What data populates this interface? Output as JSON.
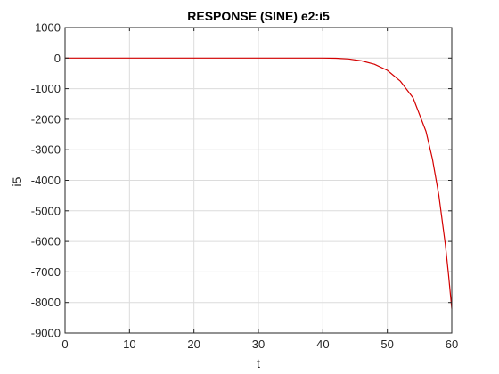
{
  "chart_data": {
    "type": "line",
    "title": "RESPONSE (SINE) e2:i5",
    "xlabel": "t",
    "ylabel": "i5",
    "xlim": [
      0,
      60
    ],
    "ylim": [
      -9000,
      1000
    ],
    "xticks": [
      0,
      10,
      20,
      30,
      40,
      50,
      60
    ],
    "yticks": [
      1000,
      0,
      -1000,
      -2000,
      -3000,
      -4000,
      -5000,
      -6000,
      -7000,
      -8000,
      -9000
    ],
    "grid": true,
    "series": [
      {
        "color": "#d40000",
        "x": [
          0,
          10,
          20,
          30,
          40,
          42,
          44,
          46,
          48,
          50,
          52,
          54,
          56,
          57,
          58,
          59,
          59.5,
          60
        ],
        "y": [
          0,
          0,
          0,
          0,
          0,
          -5,
          -30,
          -90,
          -200,
          -400,
          -750,
          -1300,
          -2400,
          -3300,
          -4500,
          -6100,
          -7100,
          -8200
        ]
      }
    ]
  }
}
